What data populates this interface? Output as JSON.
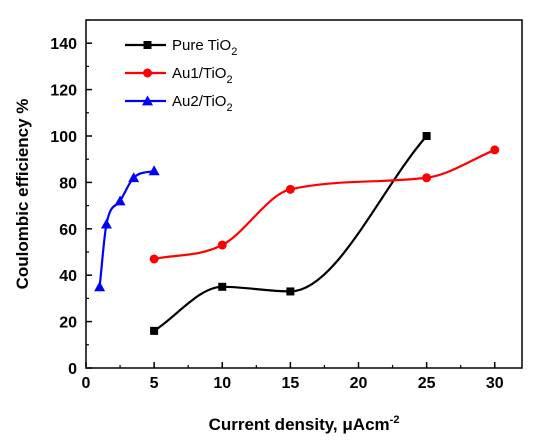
{
  "chart_data": {
    "type": "line",
    "title": "",
    "xlabel": "Current density, μAcm-2",
    "xlabel_main": "Current density, ",
    "xlabel_unit_mu": "μ",
    "xlabel_unit_base": "Acm",
    "xlabel_unit_sup": "-2",
    "ylabel": "Coulombic efficiency %",
    "xlim": [
      0,
      32
    ],
    "ylim": [
      0,
      150
    ],
    "xticks": [
      0,
      5,
      10,
      15,
      20,
      25,
      30
    ],
    "yticks": [
      0,
      20,
      40,
      60,
      80,
      100,
      120,
      140
    ],
    "grid": false,
    "legend_position": "top-left",
    "series": [
      {
        "name": "Pure TiO2",
        "label_main": "Pure TiO",
        "label_sub": "2",
        "color": "#000000",
        "marker": "square",
        "x": [
          5,
          10,
          15,
          25
        ],
        "y": [
          16,
          35,
          33,
          100
        ]
      },
      {
        "name": "Au1/TiO2",
        "label_main": "Au1/TiO",
        "label_sub": "2",
        "color": "#ff0000",
        "marker": "circle",
        "x": [
          5,
          10,
          15,
          25,
          30
        ],
        "y": [
          47,
          53,
          77,
          82,
          94
        ]
      },
      {
        "name": "Au2/TiO2",
        "label_main": "Au2/TiO",
        "label_sub": "2",
        "color": "#0000ff",
        "marker": "triangle",
        "x": [
          1,
          1.5,
          2.5,
          3.5,
          5
        ],
        "y": [
          35,
          62,
          72,
          82,
          85
        ]
      }
    ]
  }
}
